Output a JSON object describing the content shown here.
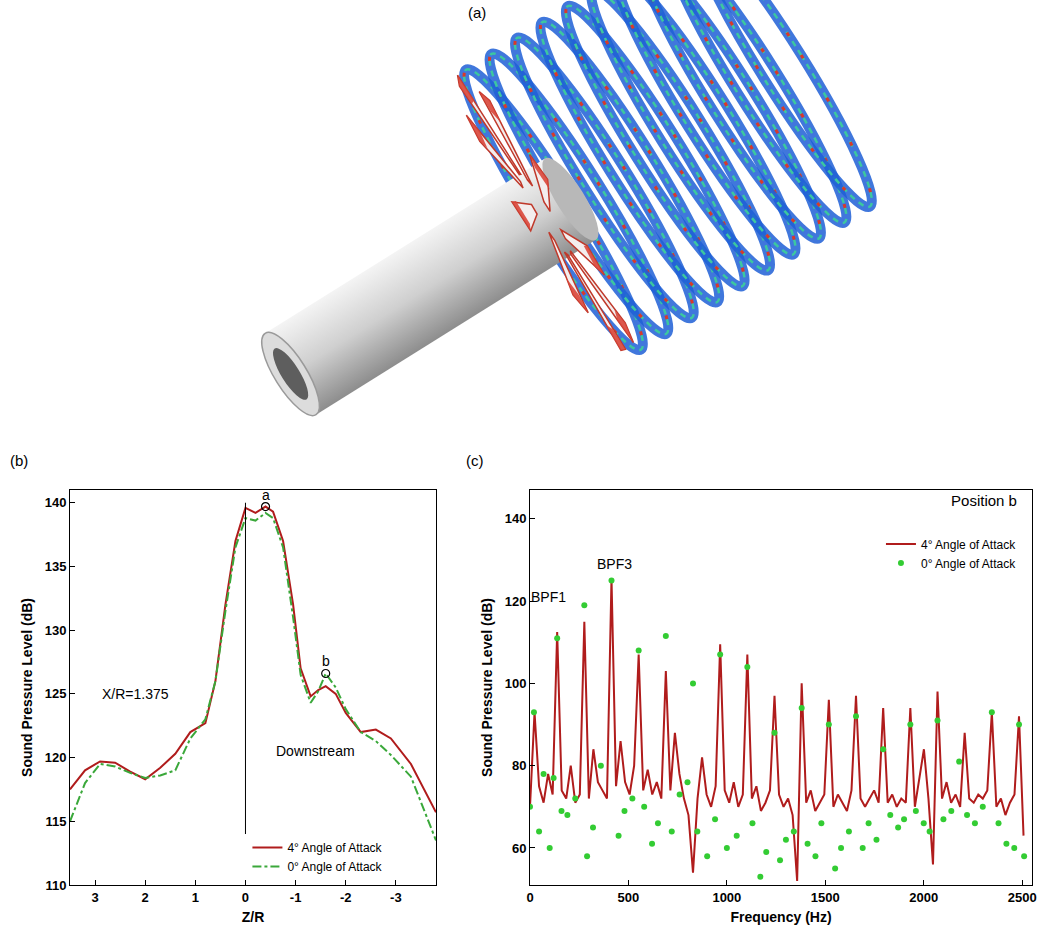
{
  "figure": {
    "label": "(a)"
  },
  "chart_data": [
    {
      "label": "(b)",
      "type": "line",
      "x_label": "Z/R",
      "y_label": "Sound Pressure Level (dB)",
      "xlim": [
        3.5,
        -3.8
      ],
      "xticks": [
        3,
        2,
        1,
        0,
        -1,
        -2,
        -3
      ],
      "ylim": [
        110,
        141
      ],
      "yticks": [
        110,
        115,
        120,
        125,
        130,
        135,
        140
      ],
      "grid": false,
      "legend": "lower right",
      "x": [
        3.5,
        3.2,
        2.9,
        2.6,
        2.3,
        2.0,
        1.7,
        1.4,
        1.1,
        0.8,
        0.6,
        0.4,
        0.2,
        0,
        -0.2,
        -0.4,
        -0.55,
        -0.75,
        -0.95,
        -1.1,
        -1.3,
        -1.45,
        -1.6,
        -1.8,
        -2.0,
        -2.3,
        -2.6,
        -2.9,
        -3.3,
        -3.8
      ],
      "series": [
        {
          "name": "4° Angle of Attack",
          "color": "#b01c1c",
          "line_style": "solid",
          "values": [
            117.5,
            119,
            119.7,
            119.6,
            118.9,
            118.3,
            119.2,
            120.3,
            122,
            122.7,
            126,
            132,
            137,
            139.6,
            139.2,
            139.7,
            139.3,
            137,
            132,
            127,
            124.8,
            125.3,
            125.6,
            125,
            123.5,
            122,
            122.2,
            121.5,
            119.5,
            115.7
          ]
        },
        {
          "name": "0° Angle of Attack",
          "color": "#3aa83a",
          "line_style": "dashdot",
          "values": [
            115,
            118,
            119.5,
            119.3,
            118.8,
            118.4,
            118.6,
            119,
            121.5,
            123,
            126,
            131.5,
            136.5,
            138.8,
            138.6,
            139.2,
            138.8,
            136.5,
            131,
            126.5,
            124.3,
            125.2,
            126.6,
            125.5,
            123.8,
            122,
            121.3,
            120.2,
            118.5,
            113.5
          ]
        }
      ],
      "annotations": [
        {
          "text": "a",
          "x": -0.4,
          "y": 139.7,
          "marker": "circle"
        },
        {
          "text": "b",
          "x": -1.6,
          "y": 126.6,
          "marker": "circle"
        },
        {
          "text": "X/R=1.375",
          "x": 2.2,
          "y": 125
        },
        {
          "text": "Downstream",
          "x": -1.4,
          "y": 120.5
        }
      ],
      "reference_line": {
        "x": 0,
        "y": [
          114,
          140
        ]
      }
    },
    {
      "label": "(c)",
      "type": "line",
      "title": "Position b",
      "x_label": "Frequency (Hz)",
      "y_label": "Sound Pressure Level (dB)",
      "xlim": [
        0,
        2550
      ],
      "xticks": [
        0,
        500,
        1000,
        1500,
        2000,
        2500
      ],
      "ylim": [
        51,
        147
      ],
      "yticks": [
        60,
        80,
        100,
        120,
        140
      ],
      "grid": false,
      "legend": "upper right",
      "series": [
        {
          "name": "4° Angle of Attack",
          "color": "#b01c1c",
          "type": "line",
          "line_style": "solid",
          "x": [
            0,
            23,
            46,
            69,
            92,
            115,
            138,
            161,
            184,
            207,
            230,
            253,
            276,
            299,
            322,
            345,
            368,
            391,
            414,
            437,
            460,
            483,
            506,
            529,
            552,
            575,
            598,
            621,
            644,
            667,
            690,
            713,
            736,
            759,
            782,
            805,
            828,
            851,
            874,
            897,
            920,
            943,
            966,
            989,
            1012,
            1035,
            1058,
            1081,
            1104,
            1127,
            1150,
            1173,
            1196,
            1219,
            1242,
            1265,
            1288,
            1311,
            1334,
            1357,
            1380,
            1403,
            1426,
            1449,
            1472,
            1495,
            1518,
            1541,
            1564,
            1587,
            1610,
            1633,
            1656,
            1679,
            1702,
            1725,
            1748,
            1771,
            1794,
            1817,
            1840,
            1863,
            1886,
            1909,
            1932,
            1955,
            1978,
            2001,
            2024,
            2047,
            2070,
            2093,
            2116,
            2139,
            2162,
            2185,
            2208,
            2231,
            2254,
            2277,
            2300,
            2323,
            2346,
            2369,
            2392,
            2415,
            2438,
            2461,
            2484,
            2507
          ],
          "values": [
            70,
            93,
            75,
            71,
            78,
            73,
            112.5,
            74,
            72,
            80,
            71,
            73,
            115,
            72,
            84,
            76,
            74,
            72,
            125.5,
            75,
            86,
            76,
            73,
            80,
            107,
            74,
            79,
            73,
            76,
            72,
            103,
            74,
            88,
            78,
            72,
            68,
            54,
            72,
            82,
            73,
            70,
            75,
            109.5,
            74,
            71,
            76,
            70,
            73,
            107,
            72,
            75,
            69,
            71,
            74,
            97,
            73,
            70,
            72,
            68,
            52,
            100,
            71,
            74,
            69,
            71,
            73,
            96,
            70,
            73,
            71,
            69,
            74,
            97,
            72,
            70,
            72,
            74,
            71,
            94,
            71,
            73,
            70,
            72,
            71,
            94,
            70,
            77,
            84,
            72,
            56,
            98,
            72,
            76,
            71,
            73,
            70,
            88,
            72,
            71,
            73,
            72,
            74,
            93,
            70,
            72,
            68,
            71,
            73,
            92,
            63
          ]
        },
        {
          "name": "0° Angle of Attack",
          "color": "#33cc33",
          "type": "scatter",
          "marker": "circle",
          "x": [
            0,
            20,
            46,
            69,
            100,
            120,
            138,
            160,
            190,
            230,
            276,
            290,
            320,
            360,
            414,
            450,
            480,
            520,
            552,
            580,
            620,
            650,
            690,
            720,
            760,
            800,
            828,
            850,
            900,
            940,
            966,
            1000,
            1050,
            1104,
            1130,
            1170,
            1200,
            1242,
            1270,
            1300,
            1340,
            1380,
            1410,
            1450,
            1480,
            1518,
            1550,
            1580,
            1620,
            1656,
            1690,
            1720,
            1760,
            1794,
            1830,
            1870,
            1900,
            1932,
            1960,
            2000,
            2030,
            2070,
            2100,
            2140,
            2180,
            2220,
            2260,
            2300,
            2346,
            2380,
            2420,
            2460,
            2484,
            2510
          ],
          "values": [
            70,
            93,
            64,
            78,
            60,
            77,
            111,
            69,
            68,
            72,
            119,
            58,
            65,
            80,
            125,
            63,
            69,
            72,
            108,
            70,
            61,
            66,
            111.5,
            64,
            73,
            76,
            100,
            64,
            58,
            67,
            107,
            60,
            63,
            104,
            66,
            53,
            59,
            88,
            57,
            62,
            64,
            94,
            61,
            58,
            66,
            90,
            55,
            60,
            64,
            92,
            60,
            66,
            62,
            84,
            68,
            65,
            67,
            90,
            69,
            66,
            64,
            91,
            67,
            69,
            81,
            68,
            66,
            70,
            93,
            66,
            61,
            60,
            90,
            58
          ]
        }
      ],
      "annotations": [
        {
          "text": "BPF1",
          "x": 95,
          "y": 121
        },
        {
          "text": "BPF3",
          "x": 430,
          "y": 129
        }
      ]
    }
  ]
}
